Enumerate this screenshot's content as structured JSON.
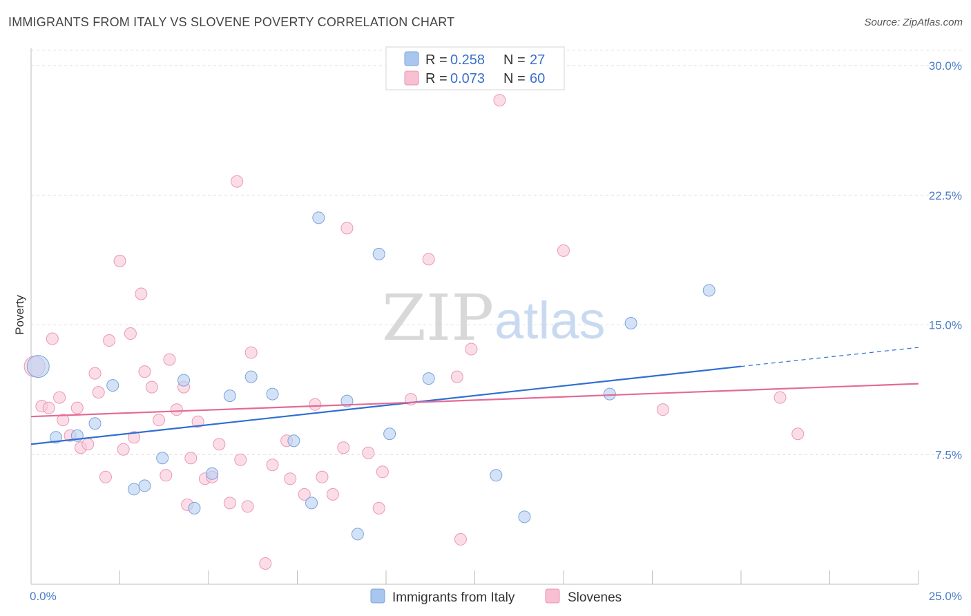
{
  "header": {
    "title": "IMMIGRANTS FROM ITALY VS SLOVENE POVERTY CORRELATION CHART",
    "source": "Source: ZipAtlas.com"
  },
  "watermark": {
    "zip": "ZIP",
    "atlas": "atlas"
  },
  "legend": {
    "r_label": "R = ",
    "n_label": "N = ",
    "rows": [
      {
        "r": "0.258",
        "n": "27",
        "color": "#a9c6ee",
        "stroke": "#7aa3dc"
      },
      {
        "r": "0.073",
        "n": "60",
        "color": "#f7bfd2",
        "stroke": "#ec91b1"
      }
    ]
  },
  "colors": {
    "series1_fill": "#bcd3f2",
    "series1_stroke": "#7aa3dc",
    "series1_line": "#2f6fd0",
    "series2_fill": "#f9cbdb",
    "series2_stroke": "#ec97b6",
    "series2_line": "#e46a96",
    "grid": "#dcdcdc",
    "tick_label": "#4a7cc9"
  },
  "chart_data": {
    "type": "scatter",
    "xlabel": "",
    "ylabel": "Poverty",
    "xlim": [
      0,
      25
    ],
    "ylim": [
      0,
      31
    ],
    "x_tick_labels": [
      {
        "value": 0,
        "label": "0.0%"
      },
      {
        "value": 25,
        "label": "25.0%"
      }
    ],
    "y_tick_labels": [
      {
        "value": 7.5,
        "label": "7.5%"
      },
      {
        "value": 15,
        "label": "15.0%"
      },
      {
        "value": 22.5,
        "label": "22.5%"
      },
      {
        "value": 30,
        "label": "30.0%"
      }
    ],
    "x_minor_ticks": [
      2.5,
      5,
      7.5,
      10,
      12.5,
      15,
      17.5,
      20,
      22.5,
      25
    ],
    "grid": true,
    "legend_placement": "top-center",
    "series": [
      {
        "name": "Immigrants from Italy",
        "trend": {
          "x": [
            0,
            20
          ],
          "y": [
            8.1,
            12.6
          ],
          "dashed_to": [
            25,
            13.7
          ]
        },
        "points": [
          {
            "x": 0.2,
            "y": 12.6,
            "big": true
          },
          {
            "x": 0.7,
            "y": 8.5
          },
          {
            "x": 1.3,
            "y": 8.6
          },
          {
            "x": 1.8,
            "y": 9.3
          },
          {
            "x": 2.3,
            "y": 11.5
          },
          {
            "x": 2.9,
            "y": 5.5
          },
          {
            "x": 3.2,
            "y": 5.7
          },
          {
            "x": 3.7,
            "y": 7.3
          },
          {
            "x": 4.3,
            "y": 11.8
          },
          {
            "x": 4.6,
            "y": 4.4
          },
          {
            "x": 5.1,
            "y": 6.4
          },
          {
            "x": 5.6,
            "y": 10.9
          },
          {
            "x": 6.2,
            "y": 12.0
          },
          {
            "x": 6.8,
            "y": 11.0
          },
          {
            "x": 7.4,
            "y": 8.3
          },
          {
            "x": 7.9,
            "y": 4.7
          },
          {
            "x": 8.1,
            "y": 21.2
          },
          {
            "x": 8.9,
            "y": 10.6
          },
          {
            "x": 9.2,
            "y": 2.9
          },
          {
            "x": 9.8,
            "y": 19.1
          },
          {
            "x": 10.1,
            "y": 8.7
          },
          {
            "x": 11.2,
            "y": 11.9
          },
          {
            "x": 13.1,
            "y": 6.3
          },
          {
            "x": 13.9,
            "y": 3.9
          },
          {
            "x": 16.3,
            "y": 11.0
          },
          {
            "x": 16.9,
            "y": 15.1
          },
          {
            "x": 19.1,
            "y": 17.0
          }
        ]
      },
      {
        "name": "Slovenes",
        "trend": {
          "x": [
            0,
            25
          ],
          "y": [
            9.7,
            11.6
          ]
        },
        "points": [
          {
            "x": 0.1,
            "y": 12.6,
            "big": true
          },
          {
            "x": 0.3,
            "y": 10.3
          },
          {
            "x": 0.5,
            "y": 10.2
          },
          {
            "x": 0.6,
            "y": 14.2
          },
          {
            "x": 0.8,
            "y": 10.8
          },
          {
            "x": 0.9,
            "y": 9.5
          },
          {
            "x": 1.1,
            "y": 8.6
          },
          {
            "x": 1.3,
            "y": 10.2
          },
          {
            "x": 1.4,
            "y": 7.9
          },
          {
            "x": 1.6,
            "y": 8.1
          },
          {
            "x": 1.8,
            "y": 12.2
          },
          {
            "x": 1.9,
            "y": 11.1
          },
          {
            "x": 2.1,
            "y": 6.2
          },
          {
            "x": 2.2,
            "y": 14.1
          },
          {
            "x": 2.5,
            "y": 18.7
          },
          {
            "x": 2.6,
            "y": 7.8
          },
          {
            "x": 2.8,
            "y": 14.5
          },
          {
            "x": 2.9,
            "y": 8.5
          },
          {
            "x": 3.1,
            "y": 16.8
          },
          {
            "x": 3.2,
            "y": 12.3
          },
          {
            "x": 3.4,
            "y": 11.4
          },
          {
            "x": 3.6,
            "y": 9.5
          },
          {
            "x": 3.8,
            "y": 6.3
          },
          {
            "x": 3.9,
            "y": 13.0
          },
          {
            "x": 4.1,
            "y": 10.1
          },
          {
            "x": 4.3,
            "y": 11.4
          },
          {
            "x": 4.4,
            "y": 4.6
          },
          {
            "x": 4.5,
            "y": 7.3
          },
          {
            "x": 4.7,
            "y": 9.4
          },
          {
            "x": 4.9,
            "y": 6.1
          },
          {
            "x": 5.1,
            "y": 6.2
          },
          {
            "x": 5.3,
            "y": 8.1
          },
          {
            "x": 5.6,
            "y": 4.7
          },
          {
            "x": 5.8,
            "y": 23.3
          },
          {
            "x": 5.9,
            "y": 7.2
          },
          {
            "x": 6.1,
            "y": 4.5
          },
          {
            "x": 6.2,
            "y": 13.4
          },
          {
            "x": 6.6,
            "y": 1.2
          },
          {
            "x": 6.8,
            "y": 6.9
          },
          {
            "x": 7.2,
            "y": 8.3
          },
          {
            "x": 7.3,
            "y": 6.1
          },
          {
            "x": 7.7,
            "y": 5.2
          },
          {
            "x": 8.0,
            "y": 10.4
          },
          {
            "x": 8.2,
            "y": 6.2
          },
          {
            "x": 8.5,
            "y": 5.2
          },
          {
            "x": 8.8,
            "y": 7.9
          },
          {
            "x": 8.9,
            "y": 20.6
          },
          {
            "x": 9.5,
            "y": 7.6
          },
          {
            "x": 9.8,
            "y": 4.4
          },
          {
            "x": 9.9,
            "y": 6.5
          },
          {
            "x": 10.7,
            "y": 10.7
          },
          {
            "x": 11.2,
            "y": 18.8
          },
          {
            "x": 12.0,
            "y": 12.0
          },
          {
            "x": 12.1,
            "y": 2.6
          },
          {
            "x": 12.4,
            "y": 13.6
          },
          {
            "x": 13.2,
            "y": 28.0
          },
          {
            "x": 15.0,
            "y": 19.3
          },
          {
            "x": 17.8,
            "y": 10.1
          },
          {
            "x": 21.1,
            "y": 10.8
          },
          {
            "x": 21.6,
            "y": 8.7
          }
        ]
      }
    ]
  }
}
